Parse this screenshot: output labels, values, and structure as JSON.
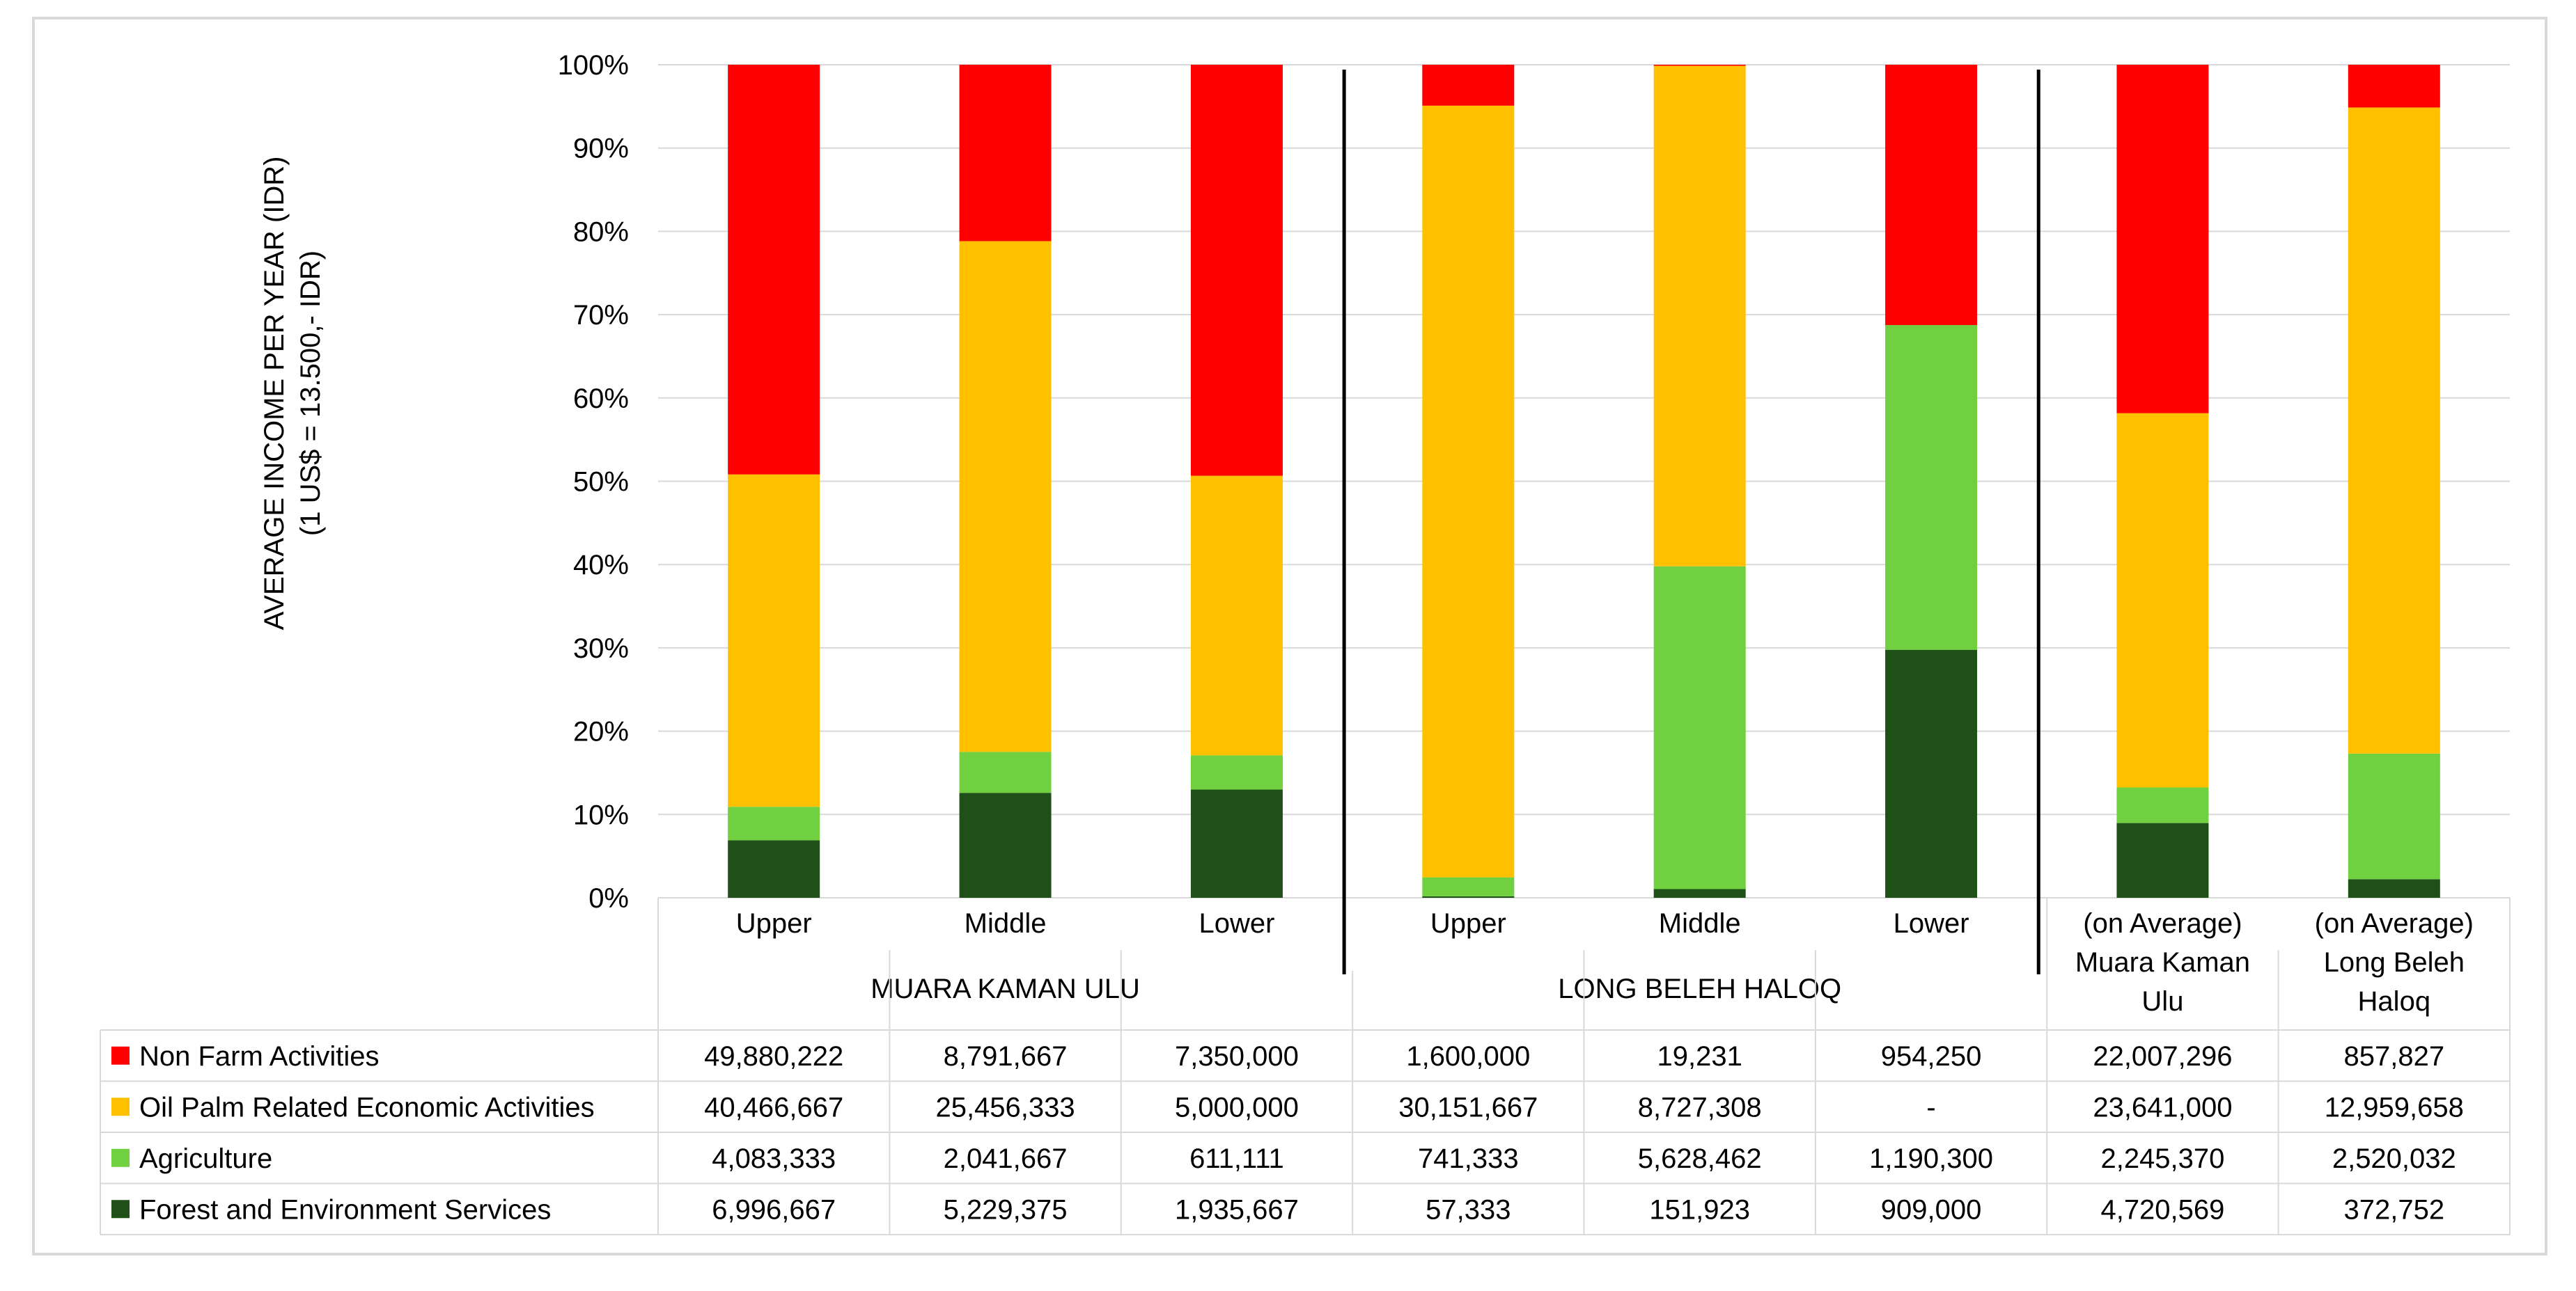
{
  "chart_data": {
    "type": "bar",
    "stacked": "percent",
    "ylabel": [
      "AVERAGE INCOME PER YEAR (IDR)",
      "(1 US$ = 13.500,- IDR)"
    ],
    "y_ticks": [
      "0%",
      "10%",
      "20%",
      "30%",
      "40%",
      "50%",
      "60%",
      "70%",
      "80%",
      "90%",
      "100%"
    ],
    "ylim": [
      0,
      100
    ],
    "grid": true,
    "categories": [
      {
        "label": [
          "Upper"
        ]
      },
      {
        "label": [
          "Middle"
        ]
      },
      {
        "label": [
          "Lower"
        ]
      },
      {
        "label": [
          "Upper"
        ]
      },
      {
        "label": [
          "Middle"
        ]
      },
      {
        "label": [
          "Lower"
        ]
      },
      {
        "label": [
          "(on Average)",
          "Muara Kaman",
          "Ulu"
        ]
      },
      {
        "label": [
          "(on Average)",
          "Long Beleh",
          "Haloq"
        ]
      }
    ],
    "groups": [
      {
        "label": "MUARA KAMAN ULU",
        "start": 0,
        "end": 2
      },
      {
        "label": "LONG BELEH HALOQ",
        "start": 3,
        "end": 5
      }
    ],
    "series": [
      {
        "name": "Non Farm Activities",
        "color": "#ff0000",
        "values": [
          49880222,
          8791667,
          7350000,
          1600000,
          19231,
          954250,
          22007296,
          857827
        ],
        "labels": [
          "49,880,222",
          "8,791,667",
          "7,350,000",
          "1,600,000",
          "19,231",
          "954,250",
          "22,007,296",
          "857,827"
        ]
      },
      {
        "name": "Oil Palm Related Economic Activities",
        "color": "#ffc000",
        "values": [
          40466667,
          25456333,
          5000000,
          30151667,
          8727308,
          0,
          23641000,
          12959658
        ],
        "labels": [
          "40,466,667",
          "25,456,333",
          "5,000,000",
          "30,151,667",
          "8,727,308",
          "-",
          "23,641,000",
          "12,959,658"
        ]
      },
      {
        "name": "Agriculture",
        "color": "#70d040",
        "values": [
          4083333,
          2041667,
          611111,
          741333,
          5628462,
          1190300,
          2245370,
          2520032
        ],
        "labels": [
          "4,083,333",
          "2,041,667",
          "611,111",
          "741,333",
          "5,628,462",
          "1,190,300",
          "2,245,370",
          "2,520,032"
        ]
      },
      {
        "name": "Forest and Environment Services",
        "color": "#1f5018",
        "values": [
          6996667,
          5229375,
          1935667,
          57333,
          151923,
          909000,
          4720569,
          372752
        ],
        "labels": [
          "6,996,667",
          "5,229,375",
          "1,935,667",
          "57,333",
          "151,923",
          "909,000",
          "4,720,569",
          "372,752"
        ]
      }
    ]
  }
}
